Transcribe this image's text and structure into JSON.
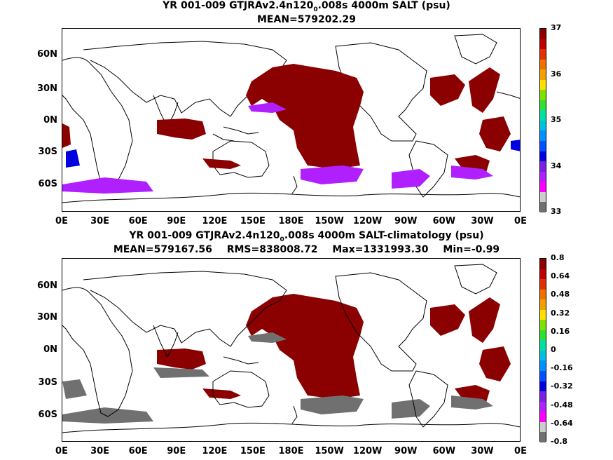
{
  "panel1": {
    "title_main": "YR 001-009 GTJRAv2.4n120",
    "title_sub": "0",
    "title_rest": ".008s 4000m SALT (psu)",
    "stats": "MEAN=579202.29",
    "colorbar_labels": [
      "37",
      "36",
      "35",
      "34",
      "33"
    ],
    "colors": [
      "#8b0000",
      "#c00000",
      "#e03000",
      "#f07000",
      "#f0a000",
      "#ffe000",
      "#80e000",
      "#30e030",
      "#00e0a0",
      "#00c0e0",
      "#0090ff",
      "#0050ff",
      "#0000e0",
      "#7a20e0",
      "#b020ff",
      "#ff00ff",
      "#cccccc",
      "#707070"
    ]
  },
  "panel2": {
    "title_main": "YR 001-009 GTJRAv2.4n120",
    "title_sub": "0",
    "title_rest": ".008s 4000m SALT-climatology (psu)",
    "stats": [
      "MEAN=579167.56",
      "RMS=838008.72",
      "Max=1331993.30",
      "Min=-0.99"
    ],
    "colorbar_labels": [
      "0.8",
      "0.64",
      "0.48",
      "0.32",
      "0.16",
      "0",
      "-0.16",
      "-0.32",
      "-0.48",
      "-0.64",
      "-0.8"
    ],
    "colors": [
      "#8b0000",
      "#c00000",
      "#e03000",
      "#f07000",
      "#f0a000",
      "#ffe000",
      "#80e000",
      "#30e030",
      "#00e0a0",
      "#00c0e0",
      "#0090ff",
      "#0050ff",
      "#0000e0",
      "#7a20e0",
      "#b020ff",
      "#ff00ff",
      "#cccccc",
      "#707070"
    ]
  },
  "axes": {
    "lat_labels": [
      "60N",
      "30N",
      "0N",
      "30S",
      "60S"
    ],
    "lon_labels": [
      "0E",
      "30E",
      "60E",
      "90E",
      "120E",
      "150E",
      "180E",
      "150W",
      "120W",
      "90W",
      "60W",
      "30W",
      "0E"
    ]
  },
  "chart_data": [
    {
      "type": "heatmap",
      "title": "YR 001-009 GTJRAv2.4n120_0.008s 4000m SALT (psu)",
      "subtitle": "MEAN=579202.29",
      "x_range": [
        "0E",
        "0E (360)"
      ],
      "y_range": [
        "90S",
        "90N"
      ],
      "colorbar_range": [
        33,
        37
      ]
    },
    {
      "type": "heatmap",
      "title": "YR 001-009 GTJRAv2.4n120_0.008s 4000m SALT-climatology (psu)",
      "subtitle": "MEAN=579167.56 RMS=838008.72 Max=1331993.30 Min=-0.99",
      "x_range": [
        "0E",
        "0E (360)"
      ],
      "y_range": [
        "90S",
        "90N"
      ],
      "colorbar_range": [
        -0.8,
        0.8
      ]
    }
  ]
}
